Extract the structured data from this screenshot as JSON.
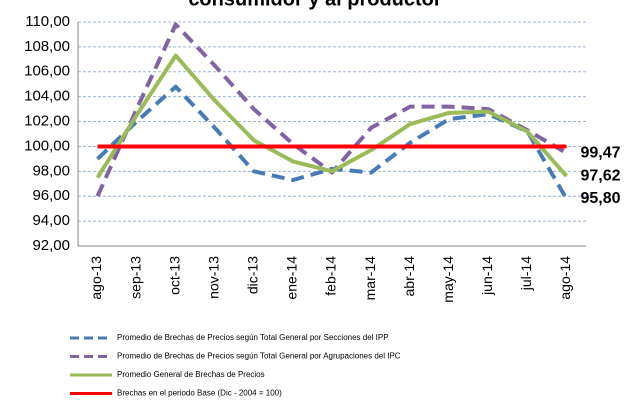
{
  "chart_data": {
    "type": "line",
    "title": "consumidor y al productor",
    "categories": [
      "ago-13",
      "sep-13",
      "oct-13",
      "nov-13",
      "dic-13",
      "ene-14",
      "feb-14",
      "mar-14",
      "abr-14",
      "may-14",
      "jun-14",
      "jul-14",
      "ago-14"
    ],
    "series": [
      {
        "name": "Promedio de Brechas de Precios según Total General por Secciones del IPP",
        "color": "#4a7ab5",
        "dashed": true,
        "values": [
          99.0,
          102.0,
          104.8,
          101.5,
          98.0,
          97.3,
          98.2,
          97.9,
          100.3,
          102.2,
          102.6,
          101.2,
          95.8
        ],
        "value_labels": [
          null,
          null,
          null,
          null,
          null,
          null,
          null,
          null,
          null,
          null,
          null,
          null,
          "95,80"
        ]
      },
      {
        "name": "Promedio de Brechas de Precios según Total General por Agrupaciones del IPC",
        "color": "#8064a2",
        "dashed": true,
        "values": [
          96.0,
          103.0,
          109.8,
          106.5,
          103.0,
          100.2,
          97.9,
          101.5,
          103.2,
          103.2,
          103.0,
          101.3,
          99.47
        ],
        "value_labels": [
          null,
          null,
          null,
          null,
          null,
          null,
          null,
          null,
          null,
          null,
          null,
          null,
          "99,47"
        ]
      },
      {
        "name": "Promedio General de Brechas de Precios",
        "color": "#9bbb59",
        "dashed": false,
        "values": [
          97.5,
          102.5,
          107.3,
          103.7,
          100.5,
          98.8,
          98.0,
          99.7,
          101.8,
          102.7,
          102.8,
          101.2,
          97.62
        ],
        "value_labels": [
          null,
          null,
          null,
          null,
          null,
          null,
          null,
          null,
          null,
          null,
          null,
          null,
          "97,62"
        ]
      },
      {
        "name": "Brechas en el periodo Base (Dic - 2004 = 100)",
        "color": "#ff0000",
        "dashed": false,
        "values": [
          100,
          100,
          100,
          100,
          100,
          100,
          100,
          100,
          100,
          100,
          100,
          100,
          100
        ]
      }
    ],
    "ylim": [
      92,
      110
    ],
    "yticks": [
      {
        "value": 92,
        "label": "92,00"
      },
      {
        "value": 94,
        "label": "94,00"
      },
      {
        "value": 96,
        "label": "96,00"
      },
      {
        "value": 98,
        "label": "98,00"
      },
      {
        "value": 100,
        "label": "100,00"
      },
      {
        "value": 102,
        "label": "102,00"
      },
      {
        "value": 104,
        "label": "104,00"
      },
      {
        "value": 106,
        "label": "106,00"
      },
      {
        "value": 108,
        "label": "108,00"
      },
      {
        "value": 110,
        "label": "110,00"
      }
    ],
    "grid": true,
    "legend": "bottom"
  }
}
